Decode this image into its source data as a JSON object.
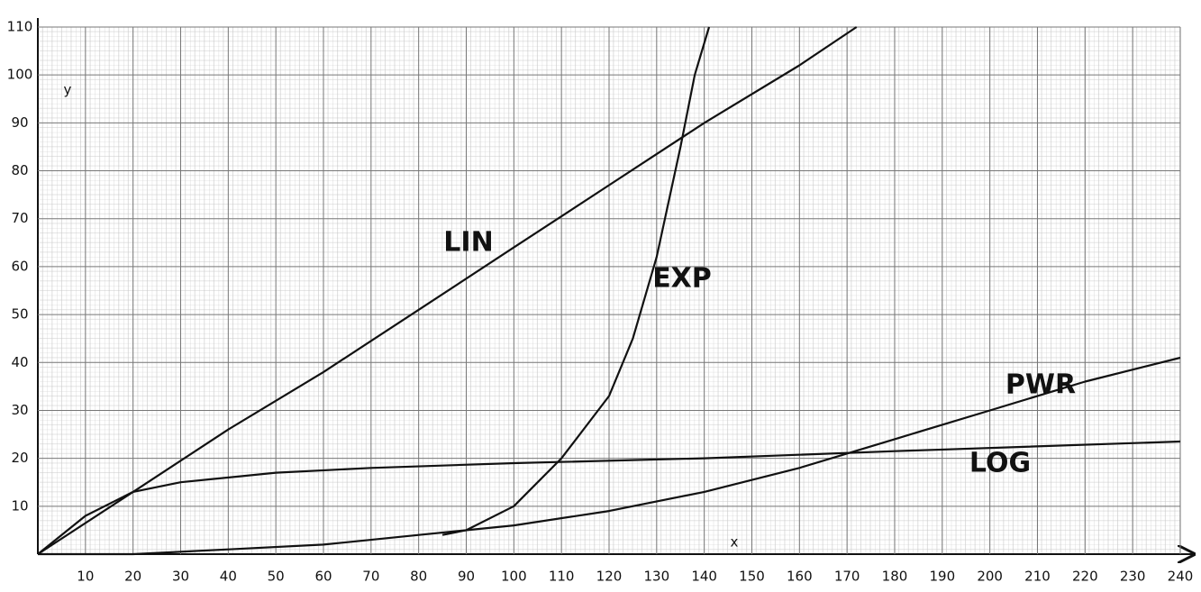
{
  "chart_data": {
    "type": "line",
    "x_label": "x",
    "y_label": "y",
    "xlim": [
      0,
      240
    ],
    "ylim": [
      0,
      110
    ],
    "xticks": [
      10,
      20,
      30,
      40,
      50,
      60,
      70,
      80,
      90,
      100,
      110,
      120,
      130,
      140,
      150,
      160,
      170,
      180,
      190,
      200,
      210,
      220,
      230,
      240
    ],
    "yticks": [
      10,
      20,
      30,
      40,
      50,
      60,
      70,
      80,
      90,
      100,
      110
    ],
    "grid": true,
    "series": [
      {
        "name": "LIN",
        "color": "#111111",
        "x": [
          0,
          20,
          40,
          60,
          80,
          100,
          120,
          140,
          160,
          172
        ],
        "values": [
          0,
          13,
          26,
          38,
          51,
          64,
          77,
          90,
          102,
          110
        ]
      },
      {
        "name": "EXP",
        "color": "#111111",
        "x": [
          85,
          90,
          100,
          110,
          120,
          125,
          130,
          135,
          138,
          141
        ],
        "values": [
          4,
          5,
          10,
          20,
          33,
          45,
          62,
          85,
          100,
          110
        ]
      },
      {
        "name": "PWR",
        "color": "#111111",
        "x": [
          0,
          20,
          40,
          60,
          80,
          100,
          120,
          140,
          160,
          180,
          200,
          220,
          240
        ],
        "values": [
          0,
          0,
          1,
          2,
          4,
          6,
          9,
          13,
          18,
          24,
          30,
          36,
          41
        ]
      },
      {
        "name": "LOG",
        "color": "#111111",
        "x": [
          0,
          10,
          20,
          30,
          50,
          70,
          100,
          140,
          180,
          240
        ],
        "values": [
          0,
          8,
          13,
          15,
          17,
          18,
          19,
          20,
          21.5,
          23.5
        ]
      }
    ]
  }
}
